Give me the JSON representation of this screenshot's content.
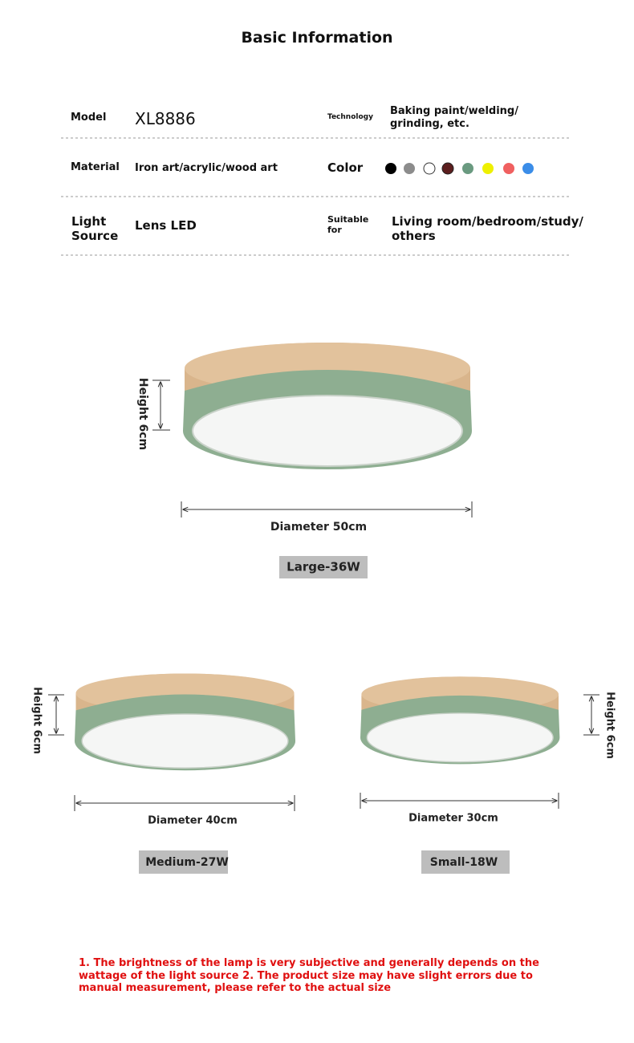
{
  "title": "Basic Information",
  "specs": [
    {
      "label": "Model",
      "value": "XL8886"
    },
    {
      "label": "Technology",
      "value": "Baking paint/welding/ grinding, etc."
    },
    {
      "label": "Material",
      "value": "Iron art/acrylic/wood art"
    },
    {
      "label": "Color"
    },
    {
      "label": "Light Source",
      "value": "Lens LED"
    },
    {
      "label": "Suitable for",
      "value": "Living room/bedroom/study/ others"
    }
  ],
  "sizes": [
    {
      "height": "Height 6cm",
      "diameter": "Diameter 50cm",
      "name": "Large-36W"
    },
    {
      "height": "Height 6cm",
      "diameter": "Diameter 40cm",
      "name": "Medium-27W"
    },
    {
      "height": "Height 6cm",
      "diameter": "Diameter 30cm",
      "name": "Small-18W"
    }
  ],
  "note": "1. The brightness of the lamp is very subjective and generally depends on the wattage of the light source 2. The product size may have slight errors due to manual measurement, please refer to the actual size"
}
